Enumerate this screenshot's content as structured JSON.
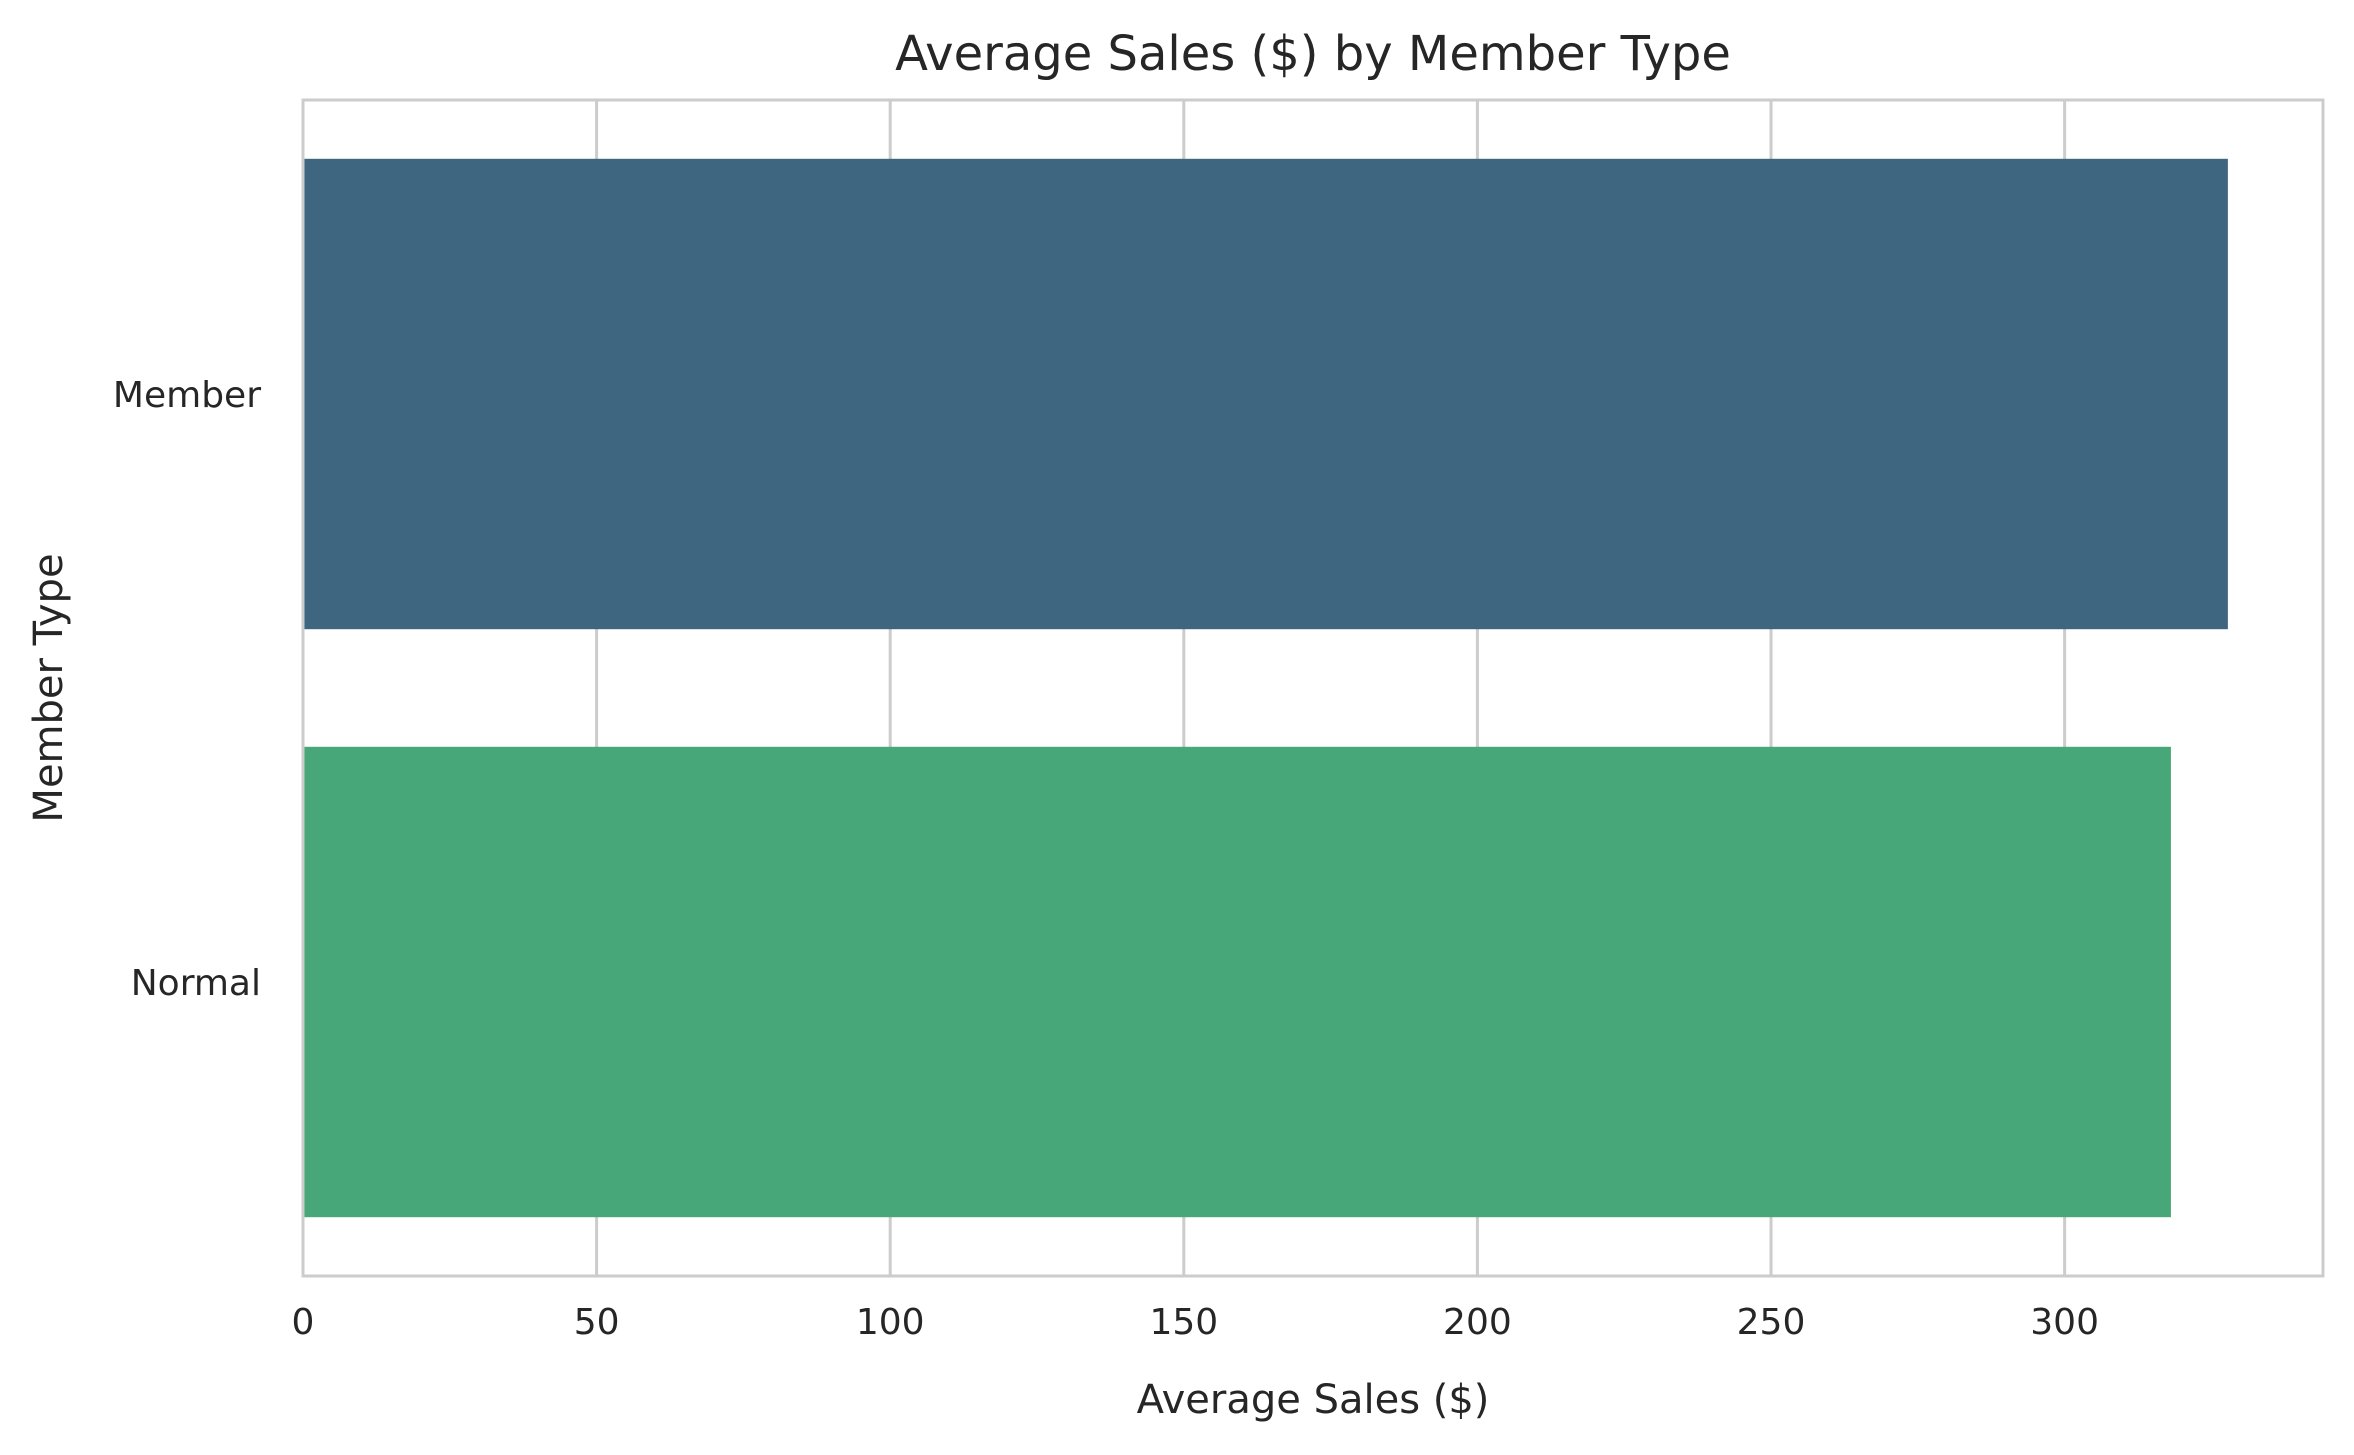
{
  "chart_data": {
    "type": "bar",
    "orientation": "horizontal",
    "title": "Average Sales ($) by Member Type",
    "xlabel": "Average Sales ($)",
    "ylabel": "Member Type",
    "categories": [
      "Member",
      "Normal"
    ],
    "values": [
      327.8,
      318.1
    ],
    "colors": [
      "#3e6680",
      "#47a778"
    ],
    "xlim": [
      0,
      344
    ],
    "xticks": [
      0,
      50,
      100,
      150,
      200,
      250,
      300
    ],
    "grid": true,
    "legend": "none"
  }
}
